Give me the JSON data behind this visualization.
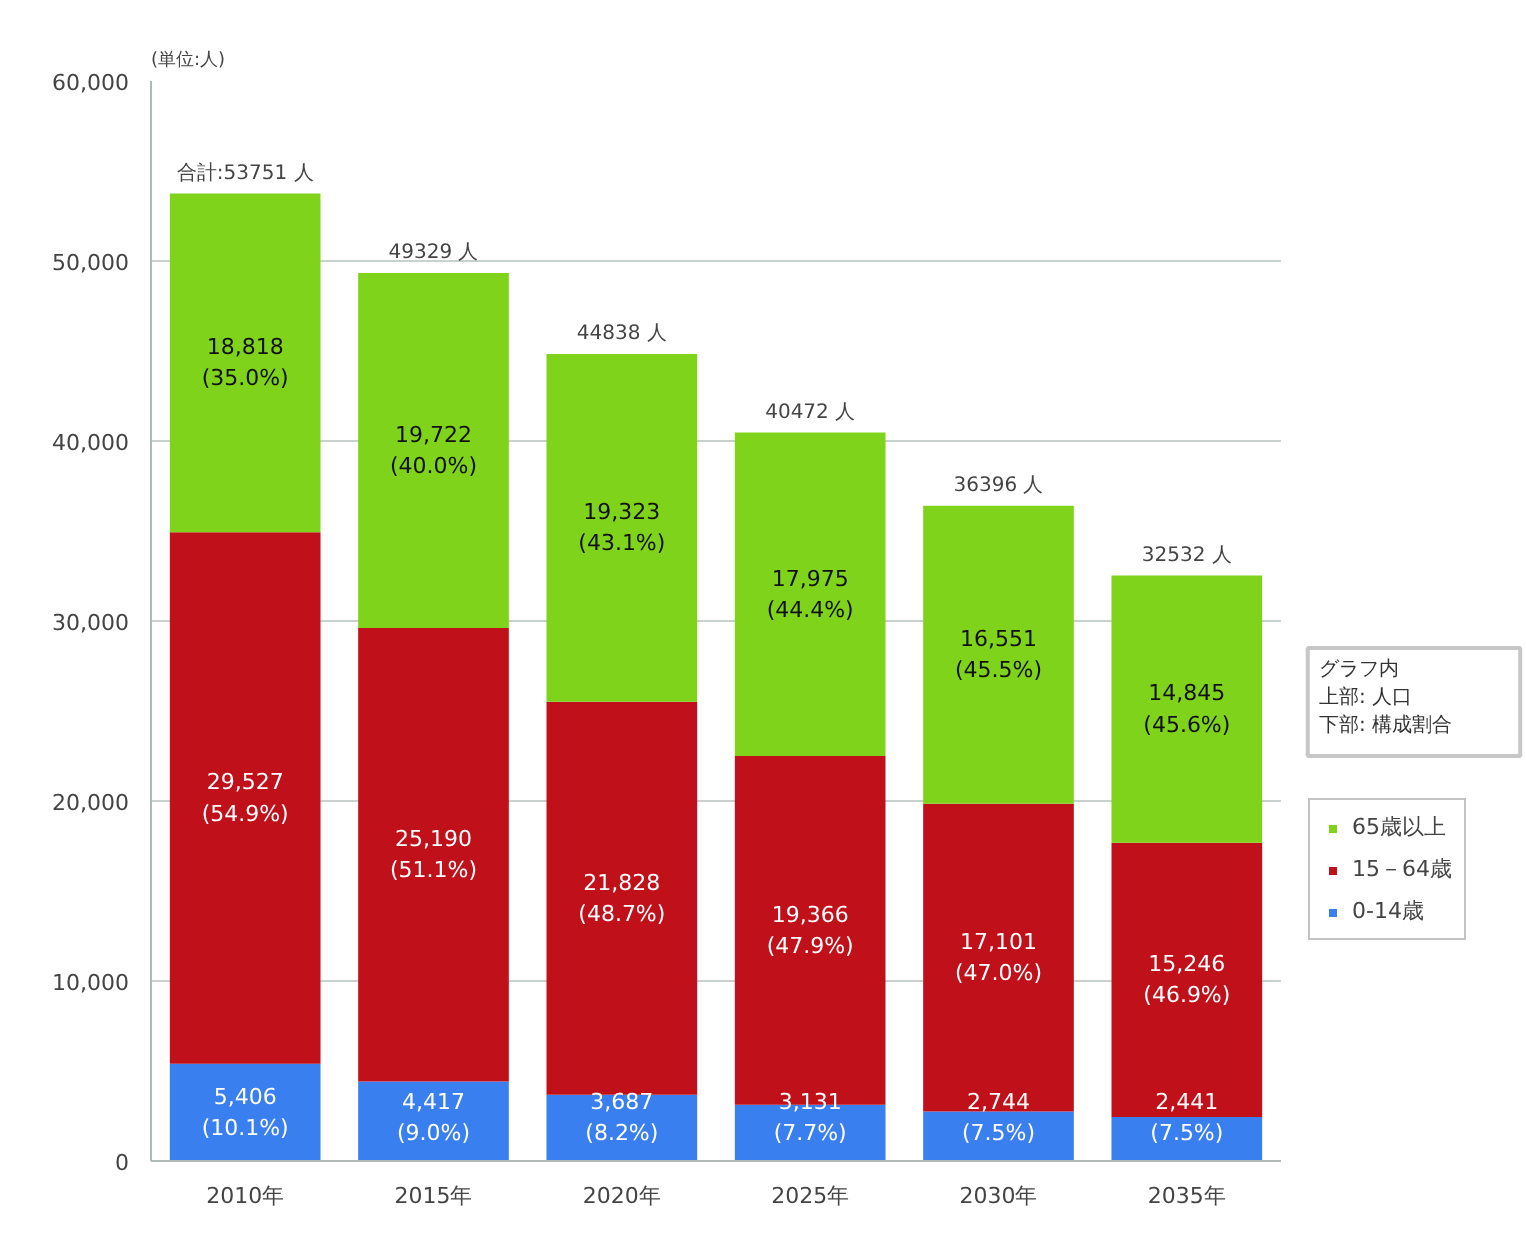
{
  "chart_data": {
    "type": "bar",
    "stacked": true,
    "categories": [
      "2010年",
      "2015年",
      "2020年",
      "2025年",
      "2030年",
      "2035年"
    ],
    "series": [
      {
        "name": "0-14歳",
        "color": "#3a7ff0",
        "values": [
          5406,
          4417,
          3687,
          3131,
          2744,
          2441
        ],
        "value_labels": [
          "5,406\n(10.1%)",
          "4,417\n(9.0%)",
          "3,687\n(8.2%)",
          "3,131\n(7.7%)",
          "2,744\n(7.5%)",
          "2,441\n(7.5%)"
        ]
      },
      {
        "name": "15－64歳",
        "color": "#c0101a",
        "values": [
          29527,
          25190,
          21828,
          19366,
          17101,
          15246
        ],
        "value_labels": [
          "29,527\n(54.9%)",
          "25,190\n(51.1%)",
          "21,828\n(48.7%)",
          "19,366\n(47.9%)",
          "17,101\n(47.0%)",
          "15,246\n(46.9%)"
        ]
      },
      {
        "name": "65歳以上",
        "color": "#7fd31a",
        "values": [
          18818,
          19722,
          19323,
          17975,
          16551,
          14845
        ],
        "value_labels": [
          "18,818\n(35.0%)",
          "19,722\n(40.0%)",
          "19,323\n(43.1%)",
          "17,975\n(44.4%)",
          "16,551\n(45.5%)",
          "14,845\n(45.6%)"
        ]
      }
    ],
    "totals": [
      "合計:53751 人",
      "49329 人",
      "44838 人",
      "40472 人",
      "36396 人",
      "32532 人"
    ],
    "ylim": [
      0,
      60000
    ],
    "yticks": [
      0,
      {
        "value": 10000,
        "label": "10,000"
      },
      {
        "value": 20000,
        "label": "20,000"
      },
      {
        "value": 30000,
        "label": "30,000"
      },
      {
        "value": 40000,
        "label": "40,000"
      },
      {
        "value": 50000,
        "label": "50,000"
      },
      {
        "value": 60000,
        "label": "60,000"
      }
    ],
    "grid": "y",
    "legend": "right",
    "annotations": [
      "(単位:人)",
      "グラフ内",
      "上部: 人口",
      "下部: 構成割合"
    ]
  }
}
